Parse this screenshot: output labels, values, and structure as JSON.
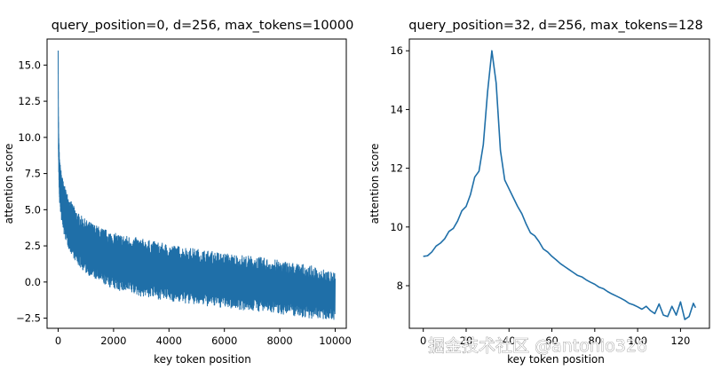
{
  "chart_data": [
    {
      "type": "line",
      "title": "query_position=0, d=256, max_tokens=10000",
      "xlabel": "key token position",
      "ylabel": "attention score",
      "xlim": [
        -400,
        10400
      ],
      "ylim": [
        -3.2,
        16.8
      ],
      "x_ticks": [
        0,
        2000,
        4000,
        6000,
        8000,
        10000
      ],
      "x_tick_labels": [
        "0",
        "2000",
        "4000",
        "6000",
        "8000",
        "10000"
      ],
      "y_ticks": [
        -2.5,
        0.0,
        2.5,
        5.0,
        7.5,
        10.0,
        12.5,
        15.0
      ],
      "y_tick_labels": [
        "−2.5",
        "0.0",
        "2.5",
        "5.0",
        "7.5",
        "10.0",
        "12.5",
        "15.0"
      ],
      "grid": false,
      "series": [
        {
          "color": "#1f6fa8",
          "x": [
            0,
            10,
            25,
            50,
            100,
            200,
            400,
            700,
            1000,
            1500,
            2000,
            3000,
            4000,
            5000,
            6000,
            7000,
            8000,
            9000,
            10000
          ],
          "y_upper": [
            16.0,
            12.0,
            10.0,
            8.5,
            7.8,
            6.8,
            5.8,
            4.8,
            4.3,
            3.8,
            3.4,
            3.0,
            2.6,
            2.3,
            2.0,
            1.8,
            1.5,
            1.2,
            0.6
          ],
          "y_lower": [
            16.0,
            9.0,
            7.0,
            5.5,
            4.5,
            3.3,
            2.2,
            1.2,
            0.6,
            0.0,
            -0.5,
            -1.0,
            -1.3,
            -1.6,
            -1.8,
            -2.0,
            -2.2,
            -2.5,
            -2.6
          ]
        }
      ]
    },
    {
      "type": "line",
      "title": "query_position=32, d=256, max_tokens=128",
      "xlabel": "key token position",
      "ylabel": "attention score",
      "xlim": [
        -6.5,
        133.5
      ],
      "ylim": [
        6.55,
        16.4
      ],
      "x_ticks": [
        0,
        20,
        40,
        60,
        80,
        100,
        120
      ],
      "x_tick_labels": [
        "0",
        "20",
        "40",
        "60",
        "80",
        "100",
        "120"
      ],
      "y_ticks": [
        8,
        10,
        12,
        14,
        16
      ],
      "y_tick_labels": [
        "8",
        "10",
        "12",
        "14",
        "16"
      ],
      "grid": false,
      "series": [
        {
          "color": "#1f6fa8",
          "x": [
            0,
            2,
            4,
            6,
            8,
            10,
            12,
            14,
            16,
            18,
            20,
            22,
            24,
            26,
            28,
            30,
            32,
            34,
            36,
            38,
            40,
            42,
            44,
            46,
            48,
            50,
            52,
            54,
            56,
            58,
            60,
            62,
            64,
            66,
            68,
            70,
            72,
            74,
            76,
            78,
            80,
            82,
            84,
            86,
            88,
            90,
            92,
            94,
            96,
            98,
            100,
            102,
            104,
            106,
            108,
            110,
            112,
            114,
            116,
            118,
            120,
            122,
            124,
            126,
            127
          ],
          "y": [
            9.0,
            9.02,
            9.15,
            9.35,
            9.45,
            9.6,
            9.85,
            9.95,
            10.2,
            10.55,
            10.7,
            11.1,
            11.7,
            11.9,
            12.8,
            14.6,
            16.0,
            14.9,
            12.6,
            11.6,
            11.3,
            11.0,
            10.7,
            10.45,
            10.1,
            9.8,
            9.7,
            9.5,
            9.25,
            9.15,
            9.0,
            8.88,
            8.75,
            8.65,
            8.55,
            8.45,
            8.35,
            8.3,
            8.2,
            8.12,
            8.05,
            7.95,
            7.9,
            7.8,
            7.72,
            7.65,
            7.58,
            7.5,
            7.4,
            7.35,
            7.28,
            7.2,
            7.3,
            7.15,
            7.05,
            7.38,
            7.0,
            6.95,
            7.3,
            7.0,
            7.45,
            6.85,
            6.95,
            7.4,
            7.25
          ]
        }
      ]
    }
  ],
  "watermark_text": "掘金技术社区 @antonio326"
}
